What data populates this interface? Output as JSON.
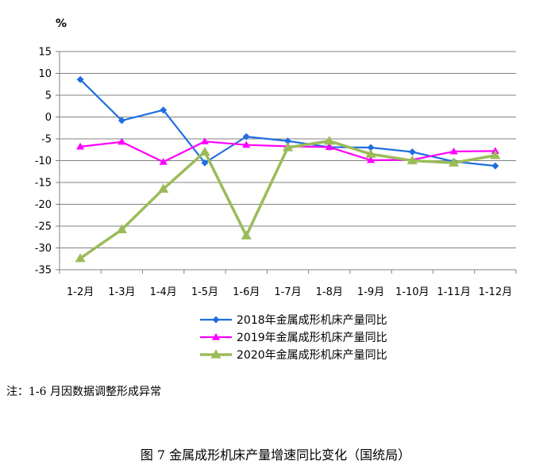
{
  "chart_data": {
    "type": "line",
    "ylabel": "%",
    "ylim": [
      -35,
      15
    ],
    "yticks": [
      15,
      10,
      5,
      0,
      -5,
      -10,
      -15,
      -20,
      -25,
      -30,
      -35
    ],
    "grid": true,
    "legend_position": "bottom",
    "categories": [
      "1-2月",
      "1-3月",
      "1-4月",
      "1-5月",
      "1-6月",
      "1-7月",
      "1-8月",
      "1-9月",
      "1-10月",
      "1-11月",
      "1-12月"
    ],
    "series": [
      {
        "name": "2018年金属成形机床产量同比",
        "color": "#1f6fe0",
        "marker": "diamond",
        "values": [
          8.6,
          -0.8,
          1.6,
          -10.5,
          -4.5,
          -5.5,
          -6.9,
          -7.0,
          -8.0,
          -10.2,
          -11.2
        ]
      },
      {
        "name": "2019年金属成形机床产量同比",
        "color": "#ff00ff",
        "marker": "triangle",
        "values": [
          -6.8,
          -5.7,
          -10.3,
          -5.6,
          -6.4,
          -6.7,
          -6.9,
          -9.9,
          -9.8,
          -7.9,
          -7.8
        ]
      },
      {
        "name": "2020年金属成形机床产量同比",
        "color": "#9bbb59",
        "marker": "triangle",
        "values": [
          -32.4,
          -25.8,
          -16.5,
          -8.0,
          -27.2,
          -7.0,
          -5.5,
          -8.5,
          -10.0,
          -10.5,
          -8.8
        ]
      }
    ]
  },
  "note": "注：1-6 月因数据调整形成异常",
  "caption": "图 7  金属成形机床产量增速同比变化（国统局）"
}
